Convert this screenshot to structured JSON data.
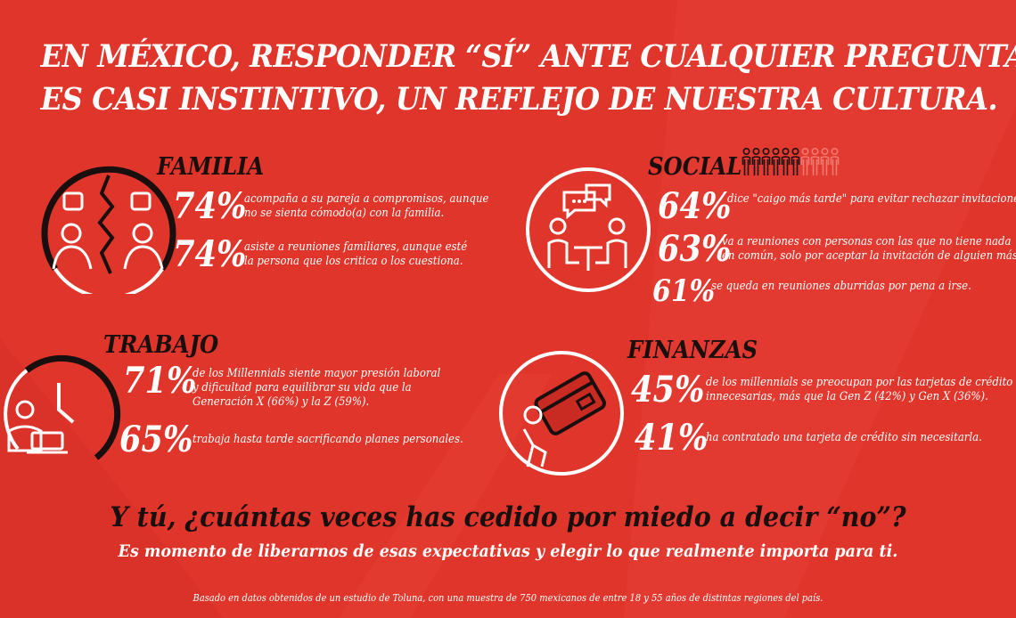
{
  "headline": {
    "line1": "EN MÉXICO, RESPONDER “SÍ” ANTE CUALQUIER PREGUNTA",
    "line2": "ES CASI INSTINTIVO, UN REFLEJO DE NUESTRA CULTURA."
  },
  "familia": {
    "title": "FAMILIA",
    "stats": [
      {
        "pct": "74%",
        "line1": "acompaña a su pareja a  compromisos, aunque",
        "line2": "no se sienta cómodo(a) con la familia."
      },
      {
        "pct": "74%",
        "line1": "asiste a reuniones familiares, aunque esté",
        "line2": "la persona que los critica o los cuestiona."
      }
    ]
  },
  "social": {
    "title": "SOCIAL",
    "people_filled_fraction": 0.64,
    "stats": [
      {
        "pct": "64%",
        "line1": "dice \"caigo más tarde\" para evitar rechazar invitaciones",
        "line2": ""
      },
      {
        "pct": "63%",
        "line1": "va a reuniones con personas con las que no tiene nada",
        "line2": "en común, solo por aceptar la invitación de alguien más."
      },
      {
        "pct": "61%",
        "line1": "se queda en reuniones aburridas por pena a irse.",
        "line2": ""
      }
    ]
  },
  "trabajo": {
    "title": "TRABAJO",
    "stats": [
      {
        "pct": "71%",
        "line1": "de los Millennials siente mayor presión laboral",
        "line2": "y dificultad para equilibrar su vida que la",
        "line3": "Generación X (66%) y la Z (59%)."
      },
      {
        "pct": "65%",
        "line1": "trabaja hasta tarde sacrificando planes personales.",
        "line2": ""
      }
    ]
  },
  "finanzas": {
    "title": "FINANZAS",
    "stats": [
      {
        "pct": "45%",
        "line1": "de los millennials se preocupan por las tarjetas de crédito",
        "line2": "innecesarias, más que la Gen Z (42%) y Gen X (36%)."
      },
      {
        "pct": "41%",
        "line1": "ha contratado una tarjeta de crédito sin necesitarla.",
        "line2": ""
      }
    ]
  },
  "closing": {
    "question": "Y tú, ¿cuántas veces has cedido por miedo a decir “no”?",
    "subline": "Es momento de liberarnos de esas expectativas y elegir lo que realmente importa para ti."
  },
  "footnote": "Basado en datos obtenidos de un estudio de Toluna, con una muestra de 750 mexicanos de entre 18 y 55 años de distintas regiones del país.",
  "colors": {
    "background": "#e0352a",
    "accent_dark": "#1a0f0f",
    "text": "#ffffff",
    "faded": "#f07a6f"
  }
}
